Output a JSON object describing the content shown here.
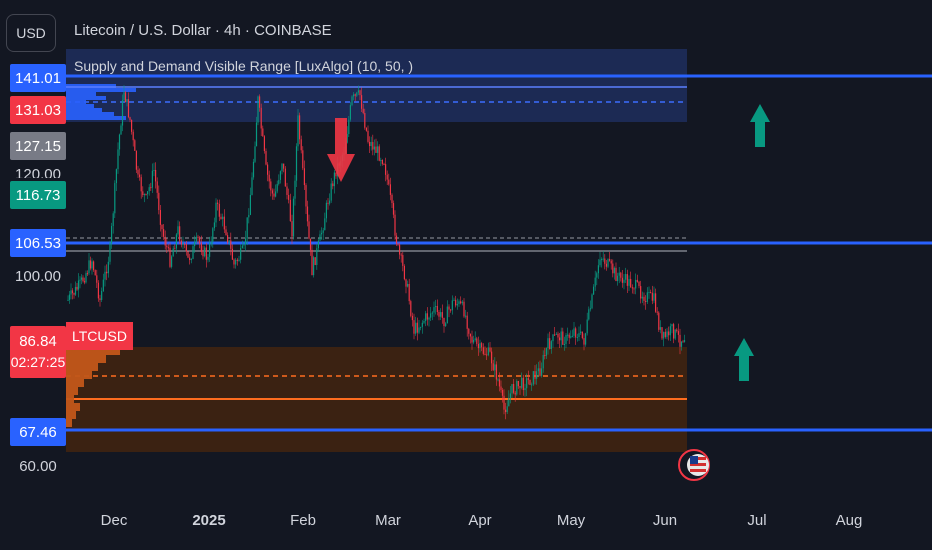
{
  "header": {
    "title": "Litecoin / U.S. Dollar · 4h · COINBASE",
    "indicator": "Supply and Demand Visible Range [LuxAlgo] (10, 50, )",
    "currency_button": "USD"
  },
  "symbol_tag": "LTCUSD",
  "price_axis": {
    "labels": [
      "100.00",
      "60.00"
    ],
    "partial_label": "120.00",
    "tags": [
      {
        "value": "141.01",
        "color": "#2962ff"
      },
      {
        "value": "131.03",
        "color": "#f23645"
      },
      {
        "value": "127.15",
        "color": "#787b86"
      },
      {
        "value": "116.73",
        "color": "#089981"
      },
      {
        "value": "106.53",
        "color": "#2962ff"
      },
      {
        "value": "67.46",
        "color": "#2962ff"
      }
    ],
    "current": {
      "value": "86.84",
      "countdown": "02:27:25",
      "color": "#f23645"
    }
  },
  "time_axis": {
    "labels": [
      "Dec",
      "2025",
      "Feb",
      "Mar",
      "Apr",
      "May",
      "Jun",
      "Jul",
      "Aug"
    ]
  },
  "colors": {
    "background": "#131722",
    "up": "#089981",
    "down": "#f23645",
    "supply_zone": "#1c2b57",
    "demand_zone": "#3d2312",
    "level_line": "#2962ff",
    "demand_line": "#ff6d1f"
  },
  "icons": [
    "arrow-up-icon",
    "arrow-down-icon",
    "us-flag-icon"
  ]
}
